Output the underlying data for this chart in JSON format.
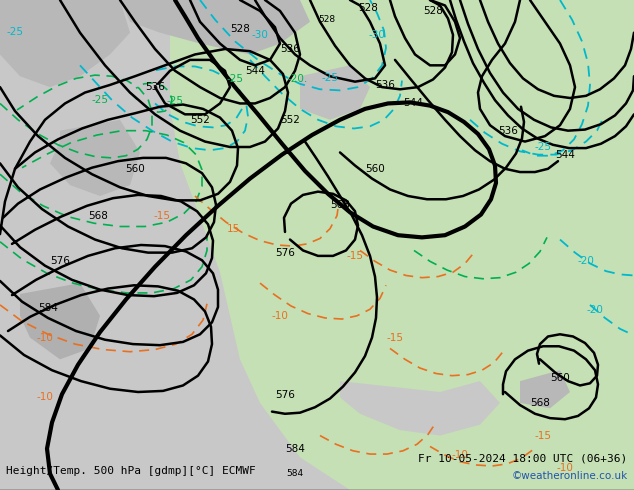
{
  "title_left": "Height/Temp. 500 hPa [gdmp][°C] ECMWF",
  "title_right": "Fr 10-05-2024 18:00 UTC (06+36)",
  "watermark": "©weatheronline.co.uk",
  "bg_color": "#d0d0d0",
  "land_color_light": "#c8e6c0",
  "land_color_mid": "#b8dab0",
  "sea_color": "#d8d8d8",
  "text_color_black": "#000000",
  "text_color_green": "#00aa44",
  "text_color_cyan": "#00aacc",
  "text_color_orange": "#dd8800",
  "text_color_blue": "#0055cc",
  "label_fontsize": 8.5,
  "footer_fontsize": 8.5,
  "watermark_color": "#2255aa"
}
